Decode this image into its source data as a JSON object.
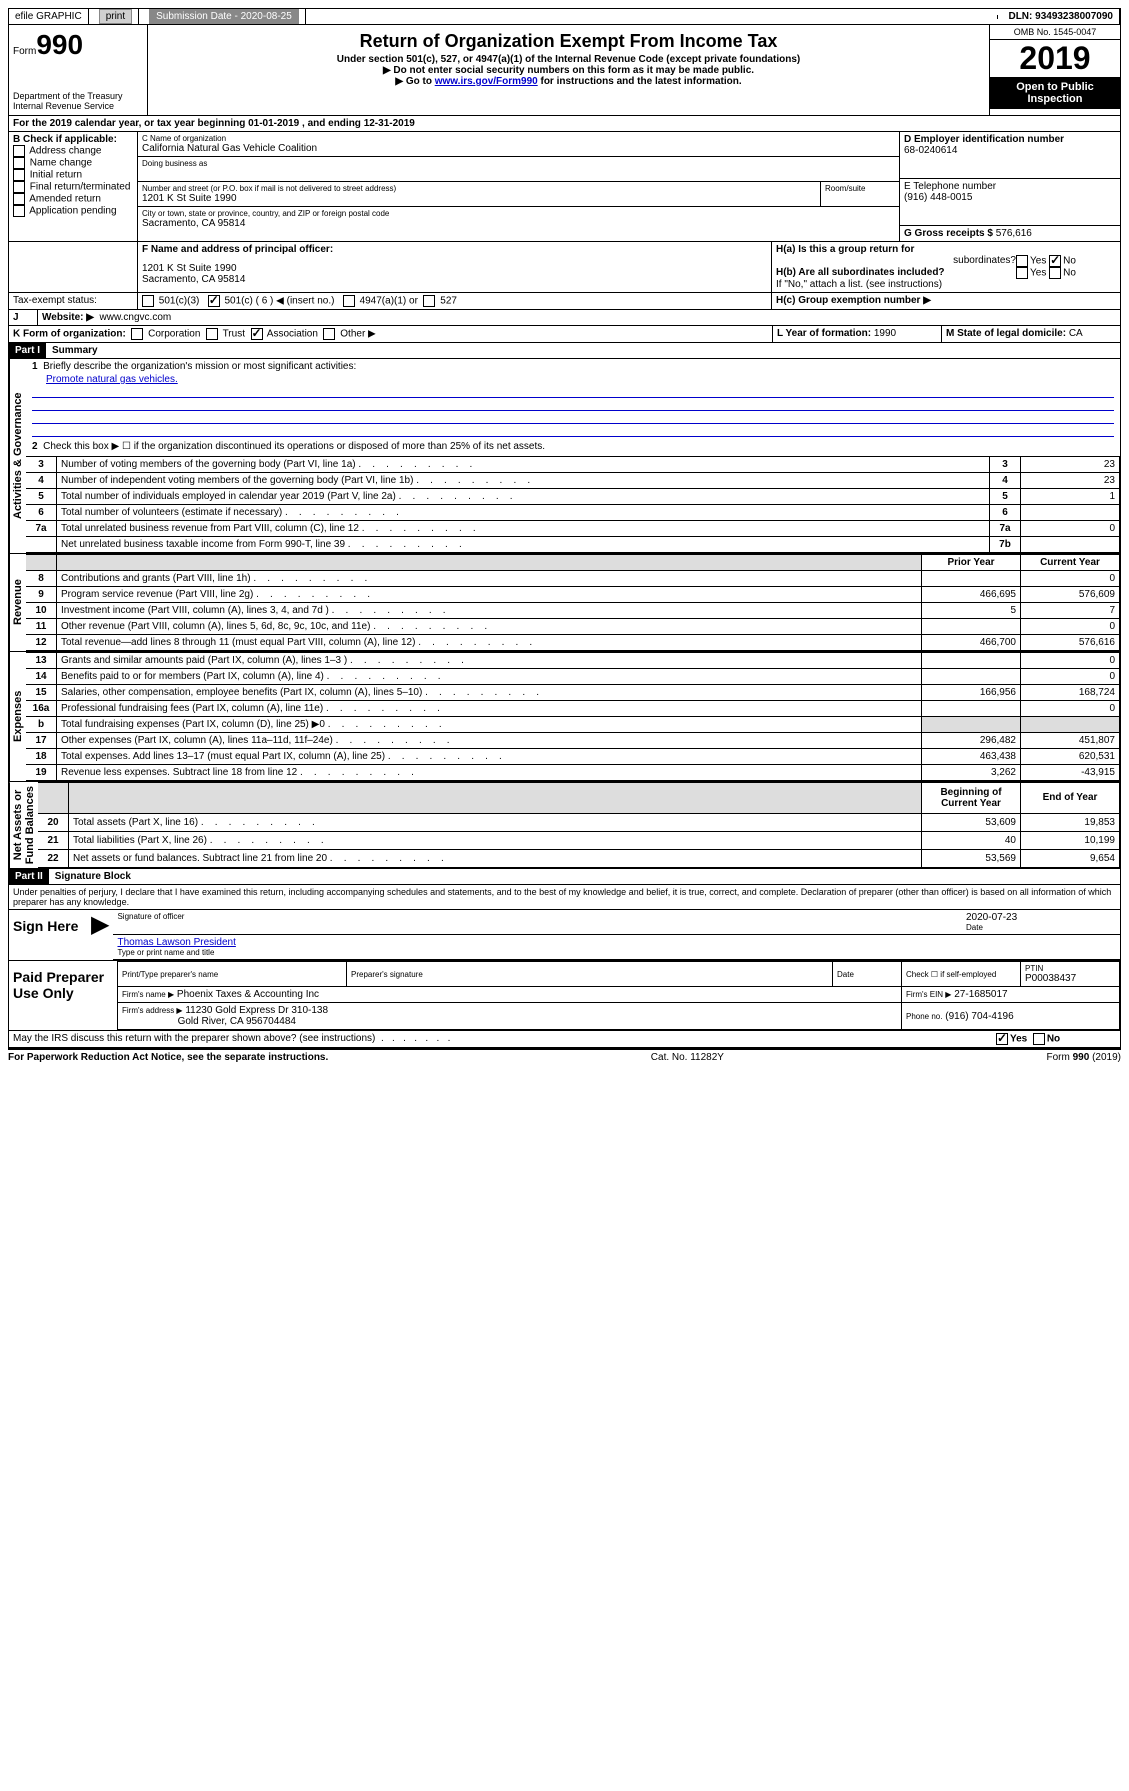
{
  "topbar": {
    "efile": "efile GRAPHIC",
    "print": "print",
    "subdate_label": "Submission Date - 2020-08-25",
    "dln": "DLN: 93493238007090"
  },
  "header": {
    "form_label": "Form",
    "form_num": "990",
    "title": "Return of Organization Exempt From Income Tax",
    "sub1": "Under section 501(c), 527, or 4947(a)(1) of the Internal Revenue Code (except private foundations)",
    "sub2": "▶ Do not enter social security numbers on this form as it may be made public.",
    "sub3a": "▶ Go to ",
    "sub3_link": "www.irs.gov/Form990",
    "sub3b": " for instructions and the latest information.",
    "dept": "Department of the Treasury",
    "irs": "Internal Revenue Service",
    "omb": "OMB No. 1545-0047",
    "year": "2019",
    "open": "Open to Public",
    "insp": "Inspection"
  },
  "a_line": "For the 2019 calendar year, or tax year beginning 01-01-2019    , and ending 12-31-2019",
  "boxB": {
    "title": "B Check if applicable:",
    "items": [
      "Address change",
      "Name change",
      "Initial return",
      "Final return/terminated",
      "Amended return",
      "Application pending"
    ]
  },
  "boxC": {
    "label": "C Name of organization",
    "name": "California Natural Gas Vehicle Coalition",
    "dba": "Doing business as",
    "addr_label": "Number and street (or P.O. box if mail is not delivered to street address)",
    "room": "Room/suite",
    "addr": "1201 K St Suite 1990",
    "city_label": "City or town, state or province, country, and ZIP or foreign postal code",
    "city": "Sacramento, CA  95814"
  },
  "boxD": {
    "label": "D Employer identification number",
    "ein": "68-0240614"
  },
  "boxE": {
    "label": "E Telephone number",
    "phone": "(916) 448-0015"
  },
  "boxG": {
    "label": "G Gross receipts $",
    "val": "576,616"
  },
  "boxF": {
    "label": "F  Name and address of principal officer:",
    "addr1": "1201 K St Suite 1990",
    "addr2": "Sacramento, CA  95814"
  },
  "boxH": {
    "a": "H(a)  Is this a group return for",
    "a2": "subordinates?",
    "b": "H(b)  Are all subordinates included?",
    "bnote": "If \"No,\" attach a list. (see instructions)",
    "c": "H(c)  Group exemption number ▶",
    "yes": "Yes",
    "no": "No"
  },
  "taxexempt": {
    "label": "Tax-exempt status:",
    "c3": "501(c)(3)",
    "c": "501(c) ( 6 ) ◀ (insert no.)",
    "a1": "4947(a)(1) or",
    "s527": "527"
  },
  "boxJ": {
    "label": "J",
    "text": "Website: ▶",
    "url": "www.cngvc.com"
  },
  "boxK": {
    "label": "K Form of organization:",
    "corp": "Corporation",
    "trust": "Trust",
    "assoc": "Association",
    "other": "Other ▶"
  },
  "boxL": {
    "label": "L Year of formation:",
    "val": "1990"
  },
  "boxM": {
    "label": "M State of legal domicile:",
    "val": "CA"
  },
  "part1": {
    "hdr": "Part I",
    "title": "Summary"
  },
  "summary": {
    "l1": "Briefly describe the organization's mission or most significant activities:",
    "mission": "Promote natural gas vehicles.",
    "l2": "Check this box ▶ ☐  if the organization discontinued its operations or disposed of more than 25% of its net assets.",
    "rows": [
      {
        "n": "3",
        "t": "Number of voting members of the governing body (Part VI, line 1a)",
        "rn": "3",
        "v": "23"
      },
      {
        "n": "4",
        "t": "Number of independent voting members of the governing body (Part VI, line 1b)",
        "rn": "4",
        "v": "23"
      },
      {
        "n": "5",
        "t": "Total number of individuals employed in calendar year 2019 (Part V, line 2a)",
        "rn": "5",
        "v": "1"
      },
      {
        "n": "6",
        "t": "Total number of volunteers (estimate if necessary)",
        "rn": "6",
        "v": ""
      },
      {
        "n": "7a",
        "t": "Total unrelated business revenue from Part VIII, column (C), line 12",
        "rn": "7a",
        "v": "0"
      },
      {
        "n": "",
        "t": "Net unrelated business taxable income from Form 990-T, line 39",
        "rn": "7b",
        "v": ""
      }
    ],
    "colhdrs": {
      "prior": "Prior Year",
      "curr": "Current Year",
      "boy": "Beginning of Current Year",
      "eoy": "End of Year"
    },
    "revenue": [
      {
        "n": "8",
        "t": "Contributions and grants (Part VIII, line 1h)",
        "p": "",
        "c": "0"
      },
      {
        "n": "9",
        "t": "Program service revenue (Part VIII, line 2g)",
        "p": "466,695",
        "c": "576,609"
      },
      {
        "n": "10",
        "t": "Investment income (Part VIII, column (A), lines 3, 4, and 7d )",
        "p": "5",
        "c": "7"
      },
      {
        "n": "11",
        "t": "Other revenue (Part VIII, column (A), lines 5, 6d, 8c, 9c, 10c, and 11e)",
        "p": "",
        "c": "0"
      },
      {
        "n": "12",
        "t": "Total revenue—add lines 8 through 11 (must equal Part VIII, column (A), line 12)",
        "p": "466,700",
        "c": "576,616"
      }
    ],
    "expenses": [
      {
        "n": "13",
        "t": "Grants and similar amounts paid (Part IX, column (A), lines 1–3 )",
        "p": "",
        "c": "0"
      },
      {
        "n": "14",
        "t": "Benefits paid to or for members (Part IX, column (A), line 4)",
        "p": "",
        "c": "0"
      },
      {
        "n": "15",
        "t": "Salaries, other compensation, employee benefits (Part IX, column (A), lines 5–10)",
        "p": "166,956",
        "c": "168,724"
      },
      {
        "n": "16a",
        "t": "Professional fundraising fees (Part IX, column (A), line 11e)",
        "p": "",
        "c": "0"
      },
      {
        "n": "b",
        "t": "Total fundraising expenses (Part IX, column (D), line 25) ▶0",
        "p": "—",
        "c": "—"
      },
      {
        "n": "17",
        "t": "Other expenses (Part IX, column (A), lines 11a–11d, 11f–24e)",
        "p": "296,482",
        "c": "451,807"
      },
      {
        "n": "18",
        "t": "Total expenses. Add lines 13–17 (must equal Part IX, column (A), line 25)",
        "p": "463,438",
        "c": "620,531"
      },
      {
        "n": "19",
        "t": "Revenue less expenses. Subtract line 18 from line 12",
        "p": "3,262",
        "c": "-43,915"
      }
    ],
    "netassets": [
      {
        "n": "20",
        "t": "Total assets (Part X, line 16)",
        "p": "53,609",
        "c": "19,853"
      },
      {
        "n": "21",
        "t": "Total liabilities (Part X, line 26)",
        "p": "40",
        "c": "10,199"
      },
      {
        "n": "22",
        "t": "Net assets or fund balances. Subtract line 21 from line 20",
        "p": "53,569",
        "c": "9,654"
      }
    ],
    "vlabels": {
      "gov": "Activities & Governance",
      "rev": "Revenue",
      "exp": "Expenses",
      "net": "Net Assets or\nFund Balances"
    }
  },
  "part2": {
    "hdr": "Part II",
    "title": "Signature Block",
    "decl": "Under penalties of perjury, I declare that I have examined this return, including accompanying schedules and statements, and to the best of my knowledge and belief, it is true, correct, and complete. Declaration of preparer (other than officer) is based on all information of which preparer has any knowledge.",
    "sign": "Sign Here",
    "sig_officer": "Signature of officer",
    "date": "Date",
    "date_val": "2020-07-23",
    "name_title": "Thomas Lawson  President",
    "name_label": "Type or print name and title",
    "paid": "Paid Preparer Use Only",
    "prep_name": "Print/Type preparer's name",
    "prep_sig": "Preparer's signature",
    "prep_date": "Date",
    "check_self": "Check ☐ if self-employed",
    "ptin": "PTIN",
    "ptin_val": "P00038437",
    "firm_name": "Firm's name    ▶",
    "firm_val": "Phoenix Taxes & Accounting Inc",
    "firm_ein": "Firm's EIN ▶",
    "firm_ein_val": "27-1685017",
    "firm_addr": "Firm's address ▶",
    "firm_addr_val": "11230 Gold Express Dr 310-138",
    "firm_city": "Gold River, CA  956704484",
    "phone": "Phone no.",
    "phone_val": "(916) 704-4196",
    "discuss": "May the IRS discuss this return with the preparer shown above? (see instructions)"
  },
  "footer": {
    "pra": "For Paperwork Reduction Act Notice, see the separate instructions.",
    "cat": "Cat. No. 11282Y",
    "form": "Form 990 (2019)"
  }
}
